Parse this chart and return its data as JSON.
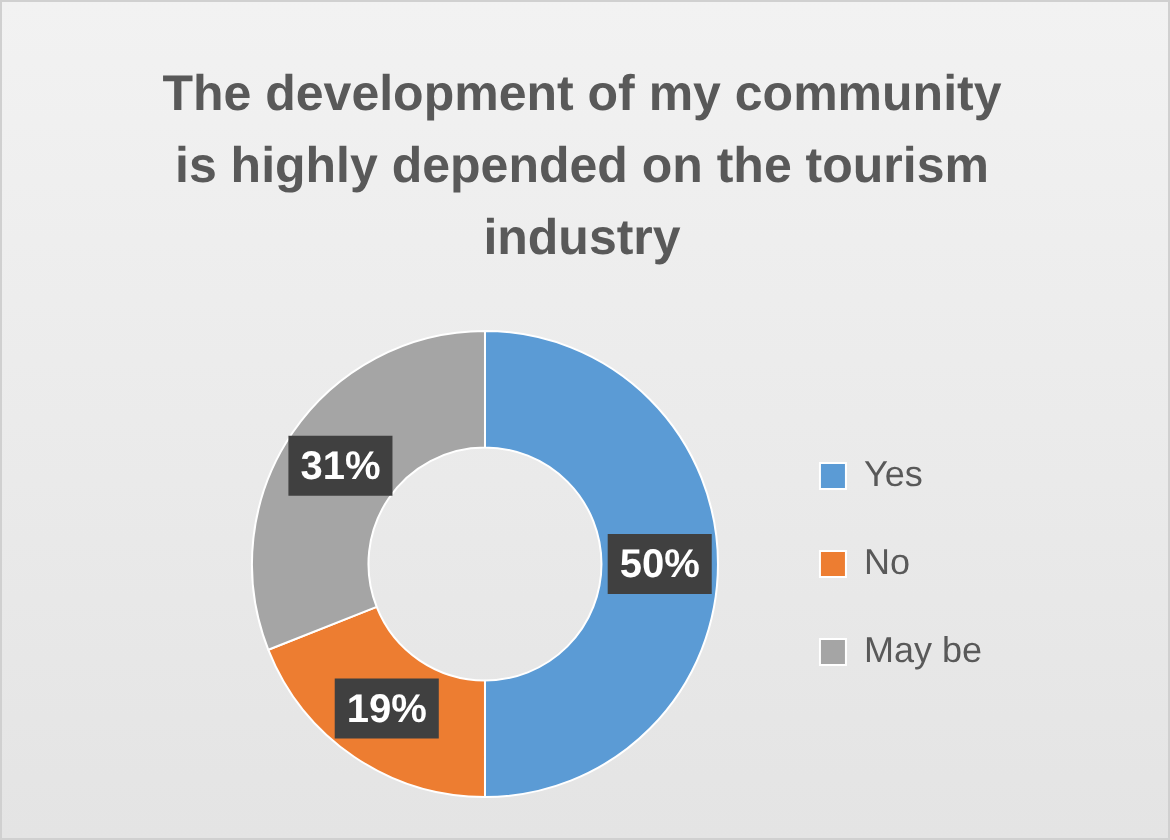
{
  "chart_data": {
    "type": "donut",
    "title": "The development of my community is highly depended on the tourism industry",
    "categories": [
      "Yes",
      "No",
      "May be"
    ],
    "values": [
      50,
      19,
      31
    ],
    "value_labels": [
      "50%",
      "19%",
      "31%"
    ],
    "colors": [
      "#5b9bd5",
      "#ed7d31",
      "#a5a5a5"
    ],
    "legend": "right"
  }
}
